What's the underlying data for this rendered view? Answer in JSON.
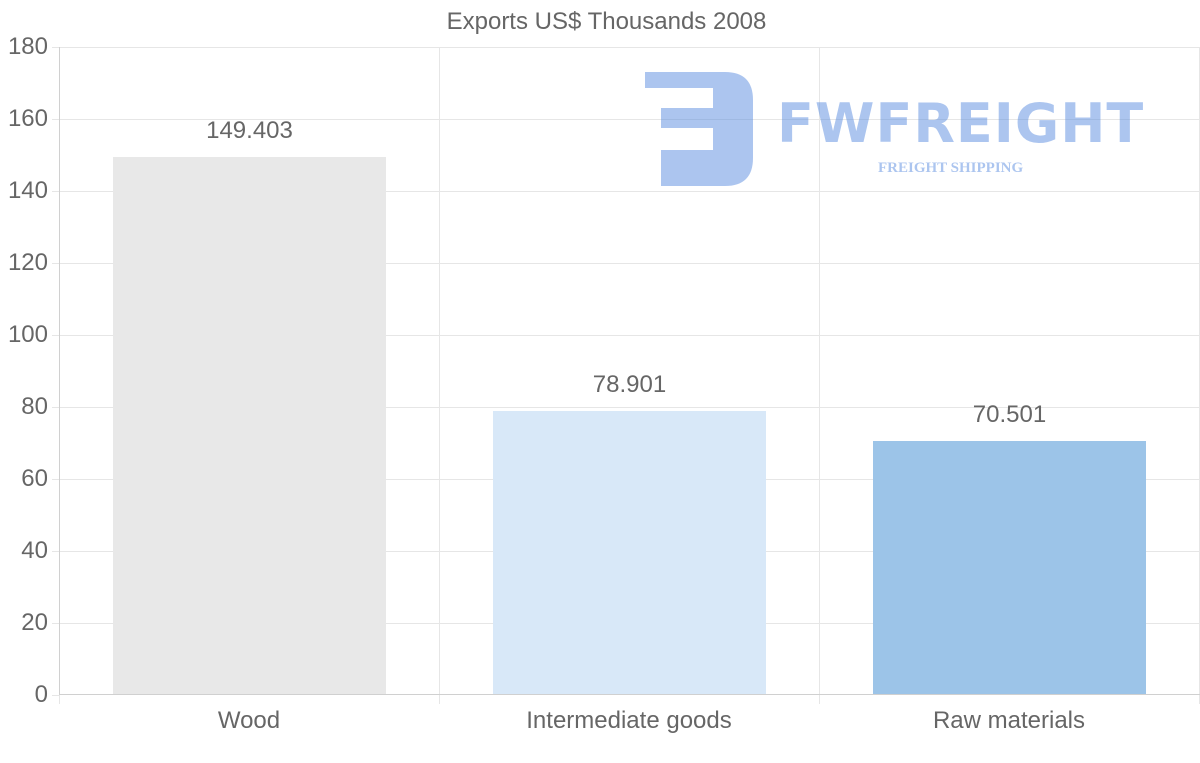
{
  "chart_data": {
    "type": "bar",
    "title": "Exports US$ Thousands 2008",
    "xlabel": "",
    "ylabel": "",
    "categories": [
      "Wood",
      "Intermediate goods",
      "Raw materials"
    ],
    "values": [
      149.403,
      78.901,
      70.501
    ],
    "value_labels": [
      "149.403",
      "78.901",
      "70.501"
    ],
    "bar_colors": [
      "#e8e8e8",
      "#d8e8f8",
      "#9cc4e8"
    ],
    "ylim": [
      0,
      180
    ],
    "yticks": [
      "0",
      "20",
      "40",
      "60",
      "80",
      "100",
      "120",
      "140",
      "160",
      "180"
    ],
    "grid": true,
    "legend": "none"
  },
  "watermark": {
    "brand": "FWFREIGHT",
    "tagline": "FREIGHT SHIPPING",
    "color": "#5b8de0"
  }
}
